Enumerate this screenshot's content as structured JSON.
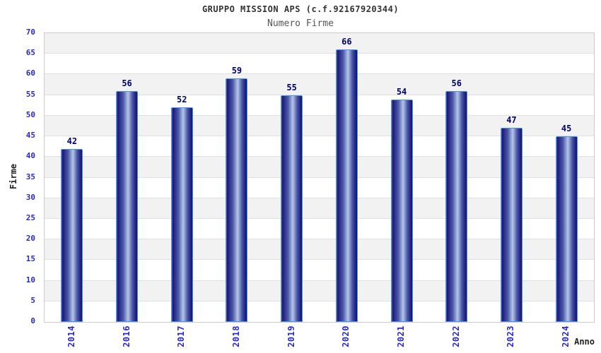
{
  "header": {
    "title": "GRUPPO MISSION APS (c.f.92167920344)",
    "subtitle": "Numero Firme"
  },
  "chart_data": {
    "type": "bar",
    "title": "GRUPPO MISSION APS (c.f.92167920344)",
    "subtitle": "Numero Firme",
    "categories": [
      "2014",
      "2016",
      "2017",
      "2018",
      "2019",
      "2020",
      "2021",
      "2022",
      "2023",
      "2024"
    ],
    "values": [
      42,
      56,
      52,
      59,
      55,
      66,
      54,
      56,
      47,
      45
    ],
    "xlabel": "Anno",
    "ylabel": "Firme",
    "ylim": [
      0,
      70
    ],
    "ytick_step": 5,
    "yticks": [
      0,
      5,
      10,
      15,
      20,
      25,
      30,
      35,
      40,
      45,
      50,
      55,
      60,
      65,
      70
    ],
    "legend": "none",
    "grid": "horizontal-bands-alternating",
    "colors": {
      "tick_label": "#2929cc",
      "value_label": "#00006e",
      "bar_edge_dark": "#14146a",
      "bar_mid": "#4a5aa6",
      "bar_highlight": "#b8c4e6",
      "bar_border": "#4a94ee",
      "band_gray": "#f2f2f2",
      "band_white": "#ffffff",
      "gridline": "#e0e0e0",
      "plot_border": "#cccccc",
      "title_color": "#333333",
      "subtitle_color": "#555555",
      "axis_title_color": "#222222"
    }
  }
}
